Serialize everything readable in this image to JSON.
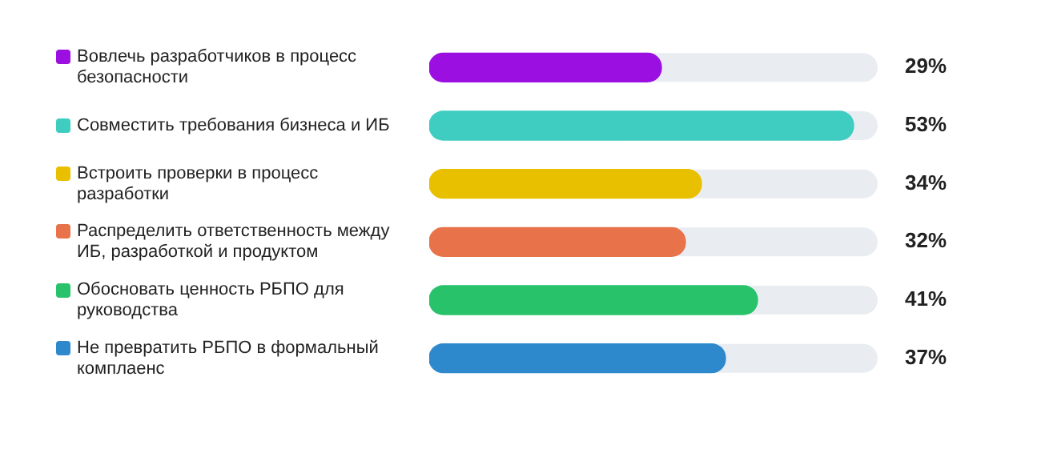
{
  "chart_data": {
    "type": "bar",
    "orientation": "horizontal",
    "categories": [
      "Вовлечь разработчиков в процесс безопасности",
      "Совместить требования бизнеса и ИБ",
      "Встроить проверки в процесс разработки",
      "Распределить ответственность между ИБ, разработкой и продуктом",
      "Обосновать ценность РБПО для руководства",
      "Не превратить РБПО в формальный комплаенс"
    ],
    "values": [
      29,
      53,
      34,
      32,
      41,
      37
    ],
    "colors": [
      "#9b0fe0",
      "#3ecdc0",
      "#e8c000",
      "#e8734a",
      "#27c26a",
      "#2e88cc"
    ],
    "value_labels": [
      "29%",
      "53%",
      "34%",
      "32%",
      "41%",
      "37%"
    ],
    "xlim": [
      0,
      56
    ],
    "grid": false,
    "legend": false
  }
}
